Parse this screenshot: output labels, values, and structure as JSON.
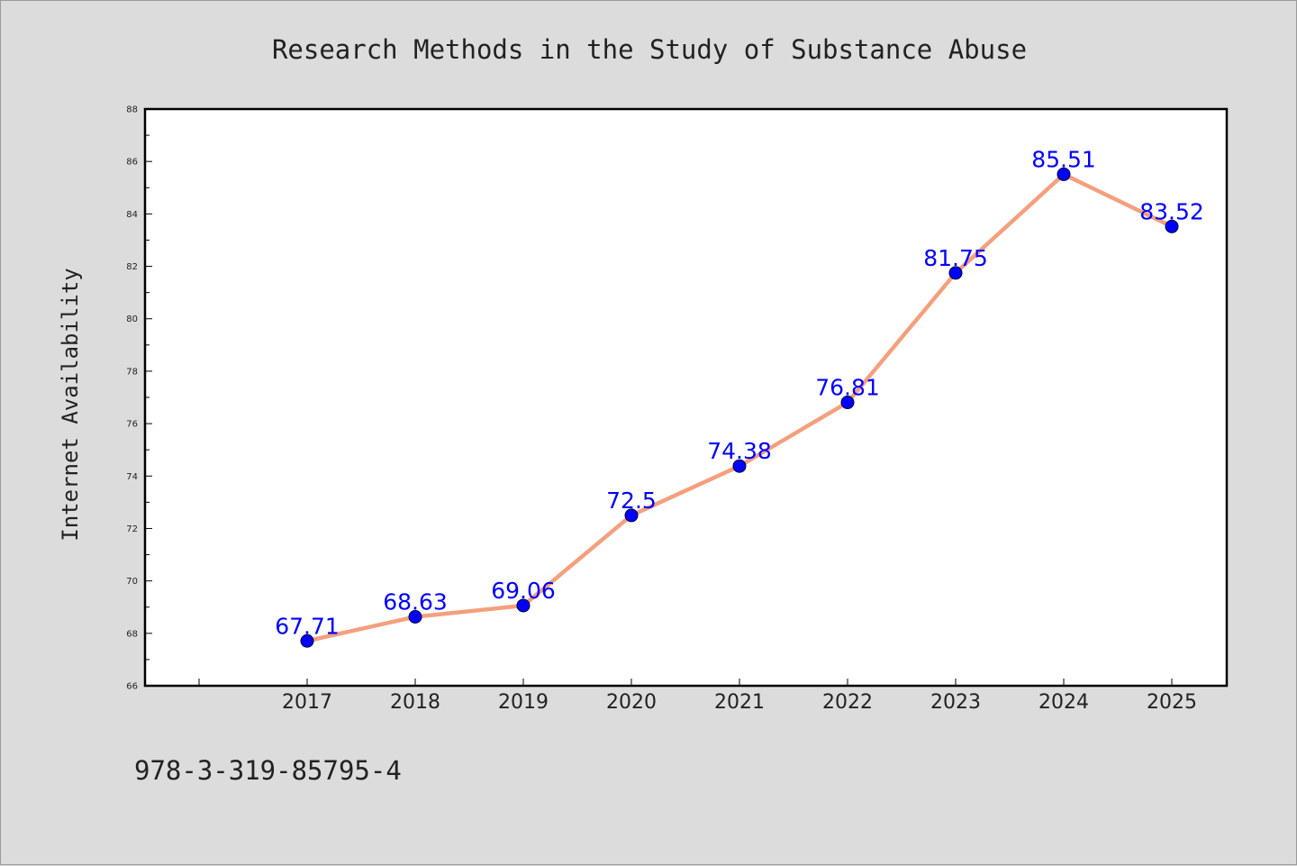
{
  "colors": {
    "background": "#dcdcdc",
    "plot_background": "#ffffff",
    "line": "#f4a07e",
    "marker": "#0000ff",
    "label": "#0000ff"
  },
  "footer": {
    "isbn": "978-3-319-85795-4"
  },
  "chart_data": {
    "type": "line",
    "title": "Research Methods in the Study of Substance Abuse",
    "xlabel": "",
    "ylabel": "Internet Availability",
    "x": [
      "2017",
      "2018",
      "2019",
      "2020",
      "2021",
      "2022",
      "2023",
      "2024",
      "2025"
    ],
    "series": [
      {
        "values": [
          67.71,
          68.63,
          69.06,
          72.5,
          74.38,
          76.81,
          81.75,
          85.51,
          83.52
        ],
        "labels": [
          "67.71",
          "68.63",
          "69.06",
          "72.5",
          "74.38",
          "76.81",
          "81.75",
          "85.51",
          "83.52"
        ]
      }
    ],
    "ylim": [
      66,
      88
    ],
    "yticks": [
      "66",
      "68",
      "70",
      "72",
      "74",
      "76",
      "78",
      "80",
      "82",
      "84",
      "86",
      "88"
    ],
    "grid": false,
    "legend": "none",
    "marker": "circle"
  }
}
